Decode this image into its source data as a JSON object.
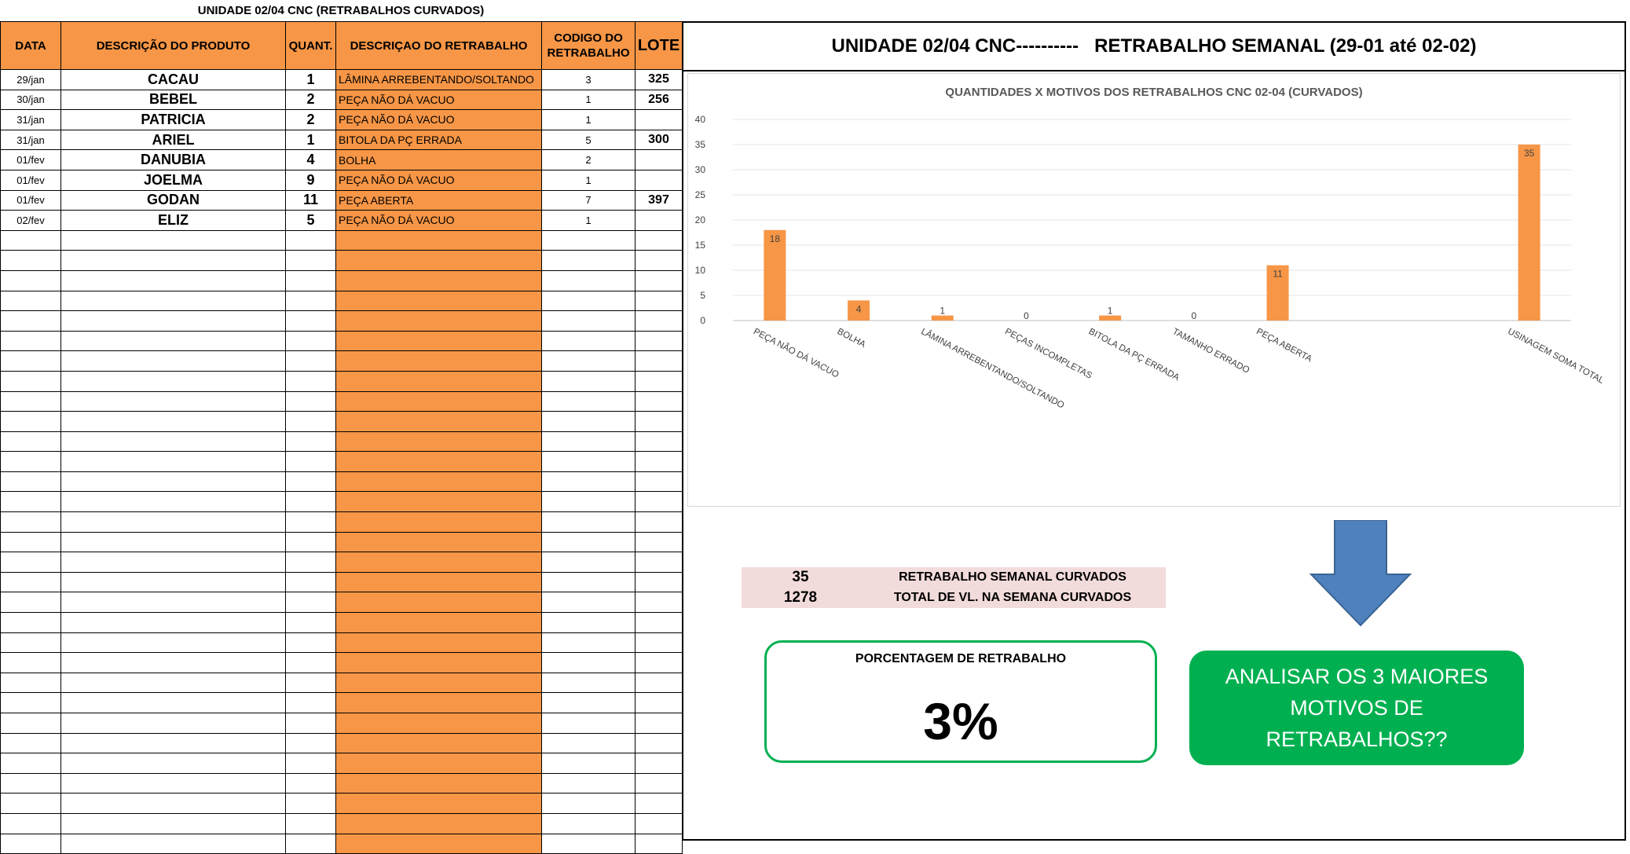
{
  "sheet": {
    "title": "UNIDADE 02/04 CNC (RETRABALHOS CURVADOS)",
    "headers": {
      "date": "DATA",
      "product": "DESCRIÇÃO DO PRODUTO",
      "quantity": "QUANT.",
      "rework_desc": "DESCRIÇAO DO RETRABALHO",
      "rework_code": "CODIGO DO RETRABALHO",
      "lot": "LOTE"
    },
    "rows": [
      {
        "date": "29/jan",
        "product": "CACAU",
        "quantity": "1",
        "rework_desc": "LÂMINA ARREBENTANDO/SOLTANDO",
        "rework_code": "3",
        "lot": "325"
      },
      {
        "date": "30/jan",
        "product": "BEBEL",
        "quantity": "2",
        "rework_desc": "PEÇA NÃO DÁ VACUO",
        "rework_code": "1",
        "lot": "256"
      },
      {
        "date": "31/jan",
        "product": "PATRICIA",
        "quantity": "2",
        "rework_desc": "PEÇA NÃO DÁ VACUO",
        "rework_code": "1",
        "lot": ""
      },
      {
        "date": "31/jan",
        "product": "ARIEL",
        "quantity": "1",
        "rework_desc": "BITOLA DA PÇ ERRADA",
        "rework_code": "5",
        "lot": "300"
      },
      {
        "date": "01/fev",
        "product": "DANUBIA",
        "quantity": "4",
        "rework_desc": "BOLHA",
        "rework_code": "2",
        "lot": ""
      },
      {
        "date": "01/fev",
        "product": "JOELMA",
        "quantity": "9",
        "rework_desc": "PEÇA NÃO DÁ VACUO",
        "rework_code": "1",
        "lot": ""
      },
      {
        "date": "01/fev",
        "product": "GODAN",
        "quantity": "11",
        "rework_desc": "PEÇA ABERTA",
        "rework_code": "7",
        "lot": "397"
      },
      {
        "date": "02/fev",
        "product": "ELIZ",
        "quantity": "5",
        "rework_desc": "PEÇA NÃO DÁ VACUO",
        "rework_code": "1",
        "lot": ""
      }
    ],
    "empty_row_count": 31
  },
  "panel": {
    "header": "UNIDADE 02/04 CNC----------   RETRABALHO SEMANAL (29-01 até 02-02)"
  },
  "chart_data": {
    "type": "bar",
    "title": "QUANTIDADES X MOTIVOS DOS RETRABALHOS CNC 02-04 (CURVADOS)",
    "categories": [
      "PEÇA NÃO DÁ VACUO",
      "BOLHA",
      "LÂMINA ARREBENTANDO/SOLTANDO",
      "PEÇAS INCOMPLETAS",
      "BITOLA DA PÇ ERRADA",
      "TAMANHO ERRADO",
      "PEÇA ABERTA",
      "",
      "",
      "USINAGEM SOMA TOTAL"
    ],
    "values": [
      18,
      4,
      1,
      0,
      1,
      0,
      11,
      null,
      null,
      35
    ],
    "ylim": [
      0,
      40
    ],
    "yticks": [
      0,
      5,
      10,
      15,
      20,
      25,
      30,
      35,
      40
    ],
    "grid": true,
    "data_labels": true,
    "color": "#f79646"
  },
  "summary": {
    "weekly_rework_value": "35",
    "weekly_rework_label": "RETRABALHO SEMANAL CURVADOS",
    "total_value": "1278",
    "total_label": "TOTAL DE VL. NA SEMANA CURVADOS"
  },
  "percentage": {
    "label": "PORCENTAGEM DE RETRABALHO",
    "value": "3%"
  },
  "callout": {
    "text": "ANALISAR OS 3 MAIORES MOTIVOS DE RETRABALHOS??"
  },
  "colors": {
    "orange": "#f79646",
    "green": "#00b050",
    "arrow_blue": "#4f81bd",
    "pink": "#f2dcdb"
  }
}
